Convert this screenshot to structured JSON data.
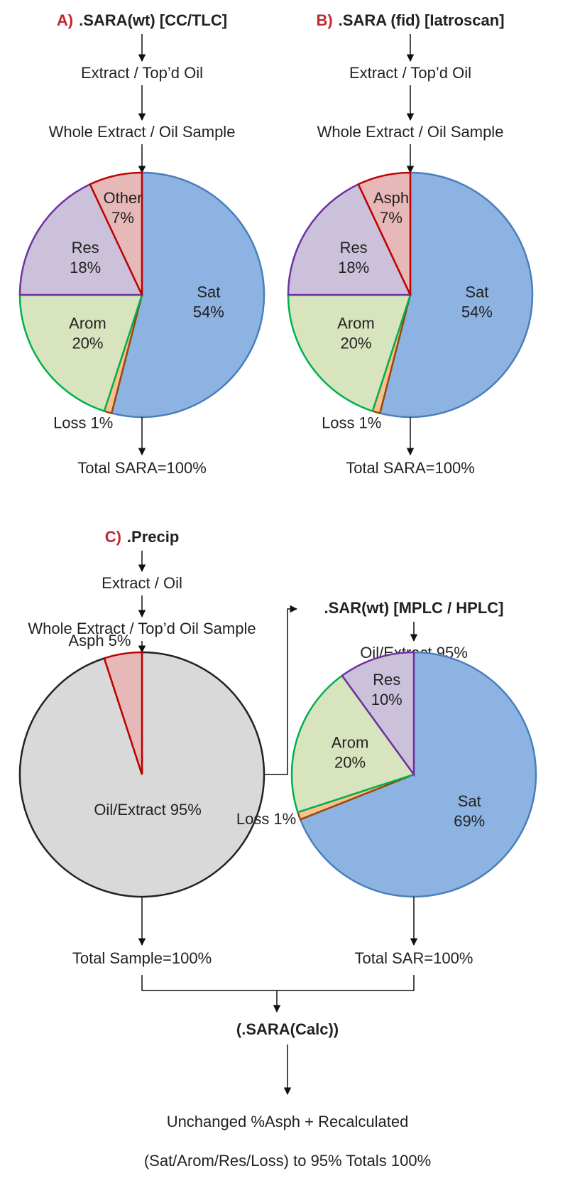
{
  "chart_data": [
    {
      "type": "pie",
      "label": "A)",
      "title": ".SARA(wt) [CC/TLC]",
      "steps": [
        "Extract / Top’d Oil",
        "Whole Extract / Oil Sample"
      ],
      "categories": [
        "Sat",
        "Loss",
        "Arom",
        "Res",
        "Other"
      ],
      "values": [
        54,
        1,
        20,
        18,
        7
      ],
      "value_labels": [
        "54%",
        "1%",
        "20%",
        "18%",
        "7%"
      ],
      "colors": [
        "#8db3e2",
        "#fac090",
        "#d7e4bd",
        "#ccc1da",
        "#e6b9b8"
      ],
      "edge_colors": [
        "#4a7ebb",
        "#984807",
        "#00b050",
        "#7030a0",
        "#c00000"
      ],
      "total": "Total SARA=100%"
    },
    {
      "type": "pie",
      "label": "B)",
      "title": ".SARA (fid) [Iatroscan]",
      "steps": [
        "Extract / Top’d Oil",
        "Whole Extract / Oil Sample"
      ],
      "categories": [
        "Sat",
        "Loss",
        "Arom",
        "Res",
        "Asph"
      ],
      "values": [
        54,
        1,
        20,
        18,
        7
      ],
      "value_labels": [
        "54%",
        "1%",
        "20%",
        "18%",
        "7%"
      ],
      "colors": [
        "#8db3e2",
        "#fac090",
        "#d7e4bd",
        "#ccc1da",
        "#e6b9b8"
      ],
      "edge_colors": [
        "#4a7ebb",
        "#984807",
        "#00b050",
        "#7030a0",
        "#c00000"
      ],
      "total": "Total SARA=100%"
    },
    {
      "type": "pie",
      "label": "C)",
      "title": ".Precip",
      "steps": [
        "Extract / Oil",
        "Whole Extract / Top’d Oil Sample"
      ],
      "categories": [
        "Oil/Extract",
        "Asph"
      ],
      "values": [
        95,
        5
      ],
      "value_labels": [
        "95%",
        "5%"
      ],
      "colors": [
        "#d9d9d9",
        "#e6b9b8"
      ],
      "edge_colors": [
        "#222222",
        "#c00000"
      ],
      "total": "Total Sample=100%"
    },
    {
      "type": "pie",
      "title": ".SAR(wt) [MPLC / HPLC]",
      "steps": [
        "Oil/Extract 95%"
      ],
      "categories": [
        "Sat",
        "Loss",
        "Arom",
        "Res"
      ],
      "values": [
        69,
        1,
        20,
        10
      ],
      "value_labels": [
        "69%",
        "1%",
        "20%",
        "10%"
      ],
      "colors": [
        "#8db3e2",
        "#fac090",
        "#d7e4bd",
        "#ccc1da"
      ],
      "edge_colors": [
        "#4a7ebb",
        "#984807",
        "#00b050",
        "#7030a0"
      ],
      "total": "Total SAR=100%"
    }
  ],
  "calc": {
    "title": "(.SARA(Calc))",
    "lines": [
      "Unchanged %Asph + Recalculated",
      "(Sat/Arom/Res/Loss) to 95% Totals 100%"
    ]
  }
}
